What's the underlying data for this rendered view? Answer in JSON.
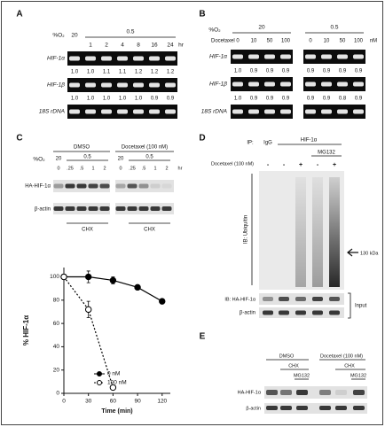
{
  "panels": {
    "A": {
      "label": "A",
      "o2_label": "%O₂",
      "o2_levels": [
        "20",
        "0.5"
      ],
      "times": [
        "1",
        "2",
        "4",
        "8",
        "16",
        "24"
      ],
      "time_unit": "hr",
      "rows": [
        {
          "name": "HIF-1α",
          "ratios": [
            "1.0",
            "1.0",
            "1.1",
            "1.1",
            "1.2",
            "1.2",
            "1.2"
          ]
        },
        {
          "name": "HIF-1β",
          "ratios": [
            "1.0",
            "1.0",
            "1.0",
            "1.0",
            "1.0",
            "0.9",
            "0.9"
          ]
        },
        {
          "name": "18S rDNA"
        }
      ]
    },
    "B": {
      "label": "B",
      "o2_label": "%O₂",
      "o2_levels": [
        "20",
        "0.5"
      ],
      "drug": "Docetaxel",
      "doses": [
        "0",
        "10",
        "50",
        "100",
        "0",
        "10",
        "50",
        "100"
      ],
      "dose_unit": "nM",
      "rows": [
        {
          "name": "HIF-1α",
          "ratios": [
            "1.0",
            "0.9",
            "0.9",
            "0.9",
            "0.9",
            "0.9",
            "0.9",
            "0.9"
          ]
        },
        {
          "name": "HIF-1β",
          "ratios": [
            "1.0",
            "0.9",
            "0.9",
            "0.9",
            "0.9",
            "0.9",
            "0.8",
            "0.9"
          ]
        },
        {
          "name": "18S rDNA"
        }
      ]
    },
    "C": {
      "label": "C",
      "groups": [
        "DMSO",
        "Docetaxel (100 nM)"
      ],
      "o2_label": "%O₂",
      "o2_levels": [
        [
          "20",
          "0.5"
        ],
        [
          "20",
          "0.5"
        ]
      ],
      "times": [
        [
          "0",
          ".25",
          ".5",
          "1",
          "2"
        ],
        [
          "0",
          ".25",
          ".5",
          "1",
          "2"
        ]
      ],
      "time_unit": "hr",
      "rows": [
        "HA-HIF-1α",
        "β-actin"
      ],
      "treatment": [
        "CHX",
        "CHX"
      ]
    },
    "D": {
      "label": "D",
      "ip_label": "IP:",
      "ip": [
        "IgG",
        "HIF-1α"
      ],
      "mg132": "MG132",
      "drug": "Docetaxel (100 nM)",
      "signs": [
        "-",
        "-",
        "+",
        "-",
        "+"
      ],
      "ib_top": "IB: Ubiquitin",
      "marker": "130 kDa",
      "ib_bottom": "IB: HA-HIF-1α",
      "loading": "β-actin",
      "input": "Input"
    },
    "E": {
      "label": "E",
      "groups": [
        "DMSO",
        "Docetaxel (100 nM)"
      ],
      "chx": [
        "CHX",
        "CHX"
      ],
      "mg132": [
        "MG132",
        "MG132"
      ],
      "rows": [
        "HA-HIF-1α",
        "β-actin"
      ]
    }
  },
  "chart_data": {
    "type": "line",
    "y_label": "% HIF-1α",
    "x_label": "Time (min)",
    "xlim": [
      0,
      130
    ],
    "ylim": [
      0,
      108
    ],
    "xticks": [
      0,
      30,
      60,
      90,
      120
    ],
    "yticks": [
      0,
      20,
      40,
      60,
      80,
      100
    ],
    "legend": "lower center",
    "series": [
      {
        "name": "0 nM",
        "color": "#000000",
        "marker": "filled",
        "dashed": false,
        "x": [
          0,
          30,
          60,
          90,
          120
        ],
        "values": [
          100,
          100,
          97,
          91,
          79
        ],
        "errors": [
          0,
          5,
          3,
          2,
          2
        ]
      },
      {
        "name": "100 nM",
        "color": "#000000",
        "marker": "open",
        "dashed": true,
        "x": [
          0,
          30,
          60
        ],
        "values": [
          100,
          72,
          5
        ],
        "errors": [
          0,
          7,
          0
        ]
      }
    ]
  }
}
